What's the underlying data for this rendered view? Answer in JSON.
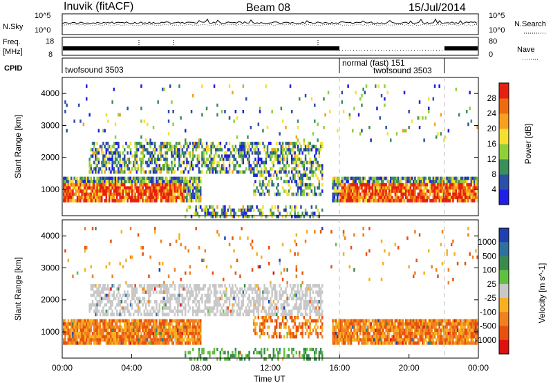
{
  "header": {
    "station": "Inuvik (fitACF)",
    "beam": "Beam 08",
    "date": "15/Jul/2014"
  },
  "panels": {
    "noise": {
      "label": "N.Sky",
      "left_ticks": [
        "10^5",
        "10^0"
      ],
      "right_ticks": [
        "10^5",
        "10^0"
      ],
      "right_label": "N.Search"
    },
    "freq": {
      "label_line1": "Freq.",
      "label_line2": "[MHz]",
      "left_ticks": [
        "18",
        "8"
      ],
      "right_ticks": [
        "80",
        "0"
      ],
      "right_label": "Nave"
    },
    "cpid": {
      "label": "CPID",
      "segments": [
        "twofsound 3503",
        "normal (fast) 151",
        "twofsound 3503"
      ]
    }
  },
  "chart_data": [
    {
      "type": "heatmap",
      "title": "",
      "ylabel": "Slant Range [km]",
      "xlabel": "",
      "y_ticks": [
        "1000",
        "2000",
        "3000",
        "4000"
      ],
      "ylim": [
        180,
        4500
      ],
      "colorbar": {
        "label": "Power [dB]",
        "ticks": [
          "4",
          "8",
          "12",
          "16",
          "20",
          "24",
          "28"
        ],
        "colors": [
          "#1f1fe6",
          "#2c4fa8",
          "#3a8f5a",
          "#8fcf3a",
          "#f5e030",
          "#f7a020",
          "#f06a10",
          "#e62010"
        ]
      }
    },
    {
      "type": "heatmap",
      "title": "",
      "ylabel": "Slant Range [km]",
      "xlabel": "Time UT",
      "y_ticks": [
        "1000",
        "2000",
        "3000",
        "4000"
      ],
      "ylim": [
        180,
        4500
      ],
      "x_ticks": [
        "00:00",
        "04:00",
        "08:00",
        "12:00",
        "16:00",
        "20:00",
        "00:00"
      ],
      "colorbar": {
        "label": "Velocity [m s^-1]",
        "ticks": [
          "1000",
          "500",
          "100",
          "25",
          "-25",
          "-100",
          "-500",
          "-1000"
        ],
        "colors": [
          "#2040b0",
          "#3070a0",
          "#3a8a50",
          "#60c040",
          "#c8c8c8",
          "#f7b020",
          "#f08020",
          "#e85010",
          "#e01010"
        ]
      }
    }
  ]
}
